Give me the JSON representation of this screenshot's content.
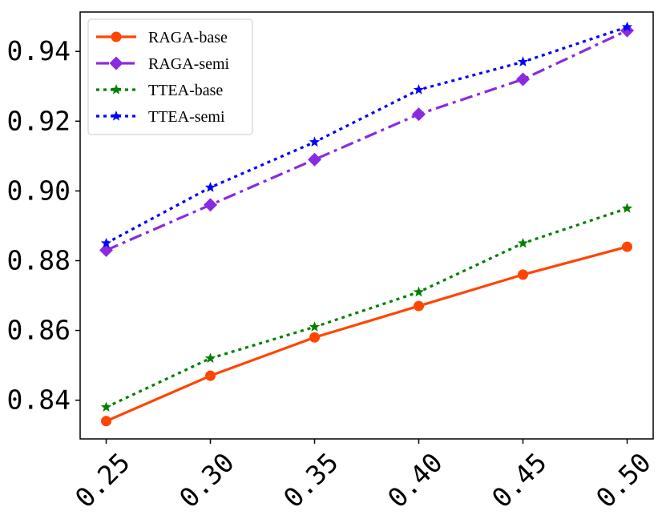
{
  "chart_data": {
    "type": "line",
    "title": "",
    "xlabel": "",
    "ylabel": "",
    "x": [
      0.25,
      0.3,
      0.35,
      0.4,
      0.45,
      0.5
    ],
    "xtick_labels": [
      "0.25",
      "0.30",
      "0.35",
      "0.40",
      "0.45",
      "0.50"
    ],
    "ytick_values": [
      0.84,
      0.86,
      0.88,
      0.9,
      0.92,
      0.94
    ],
    "ytick_labels": [
      "0.84",
      "0.86",
      "0.88",
      "0.90",
      "0.92",
      "0.94"
    ],
    "xlim": [
      0.2375,
      0.5125
    ],
    "ylim": [
      0.8289,
      0.9513
    ],
    "grid": false,
    "legend_position": "top-left",
    "series": [
      {
        "name": "RAGA-base",
        "values": [
          0.834,
          0.847,
          0.858,
          0.867,
          0.876,
          0.884
        ],
        "color": "#ff4500",
        "linestyle": "solid",
        "marker": "circle"
      },
      {
        "name": "RAGA-semi",
        "values": [
          0.883,
          0.896,
          0.909,
          0.922,
          0.932,
          0.946
        ],
        "color": "#8a2be2",
        "linestyle": "dashdot",
        "marker": "diamond"
      },
      {
        "name": "TTEA-base",
        "values": [
          0.838,
          0.852,
          0.861,
          0.871,
          0.885,
          0.895
        ],
        "color": "#008000",
        "linestyle": "dotted",
        "marker": "star"
      },
      {
        "name": "TTEA-semi",
        "values": [
          0.885,
          0.901,
          0.914,
          0.929,
          0.937,
          0.947
        ],
        "color": "#0000ff",
        "linestyle": "dotted",
        "marker": "star"
      }
    ]
  }
}
